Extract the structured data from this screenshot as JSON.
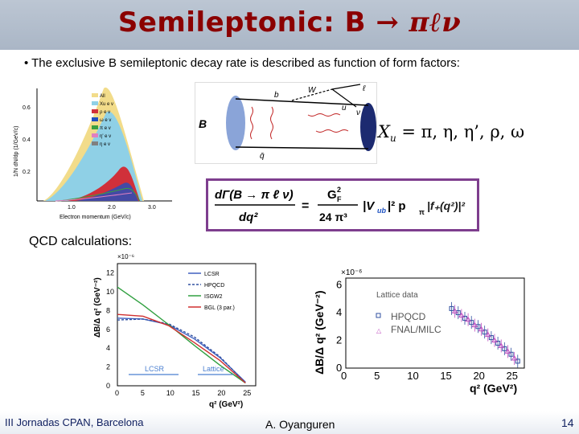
{
  "slide": {
    "title_prefix": "Semileptonic: B ",
    "title_arrow": "→",
    "title_products": " πℓν",
    "bullet": "• The exclusive B semileptonic decay rate is described as function of form factors:",
    "xu_label": "= π, η, η’, ρ, ω",
    "qcd_label": "QCD calculations:",
    "footer_left": "III Jornadas CPAN, Barcelona",
    "footer_mid": "A. Oyanguren",
    "footer_right": "14"
  },
  "feynman": {
    "B": "B",
    "b": "b",
    "W": "W",
    "u": "u",
    "l": "ℓ",
    "nu": "ν",
    "qbar": "q̄",
    "Xu": "X"
  },
  "formula": {
    "lhs_num": "dΓ(B → π ℓ ν)",
    "lhs_den": "dq²",
    "equals": "=",
    "rhs_num": "G",
    "rhs_den": "24 π³",
    "vub": "|V",
    "ub_sub": "ub",
    "rest": "|² p",
    "pi_sub": "π",
    "cube": "³",
    "ff": "|f₊(q²)|²"
  },
  "plot_left": {
    "ylabel": "1/N dN/dp (1/GeV/c)",
    "xlabel": "Electron momentum (GeV/c)",
    "yticks": [
      "0.6",
      "0.4",
      "0.2"
    ],
    "xticks": [
      "1.0",
      "2.0",
      "3.0"
    ],
    "legend": [
      "All",
      "Xu e v",
      "ρ e v",
      "ω e v",
      "π e v",
      "η' e v",
      "η e v"
    ],
    "colors": [
      "#f2dc8a",
      "#8fd0e6",
      "#d0303a",
      "#2050c0",
      "#3aa040",
      "#e080c0",
      "#808080"
    ]
  },
  "plot_mid": {
    "scale": "×10⁻⁶",
    "ylabel": "ΔB/Δ q² (GeV⁻²)",
    "xlabel": "q² (GeV²)",
    "yticks": [
      "12",
      "10",
      "8",
      "6",
      "4",
      "2",
      "0"
    ],
    "xticks": [
      "0",
      "5",
      "10",
      "15",
      "20",
      "25"
    ],
    "legend": [
      "LCSR",
      "HPQCD",
      "ISGW2",
      "BGL (3 par.)"
    ],
    "legend_colors": [
      "#4060c0",
      "#3050a0",
      "#30a040",
      "#d03030"
    ],
    "region_lcsr": "LCSR",
    "region_lattice": "Lattice",
    "chart_data": {
      "type": "line",
      "x": [
        0,
        5,
        10,
        15,
        20,
        25
      ],
      "series": [
        {
          "name": "LCSR",
          "values": [
            7.2,
            7.1,
            6.5,
            5.0,
            3.0,
            0.4
          ]
        },
        {
          "name": "HPQCD",
          "values": [
            7.0,
            7.1,
            6.6,
            5.2,
            3.1,
            0.3
          ]
        },
        {
          "name": "ISGW2",
          "values": [
            10.5,
            8.6,
            6.5,
            4.3,
            2.2,
            0.3
          ]
        },
        {
          "name": "BGL (3 par.)",
          "values": [
            7.6,
            7.4,
            6.4,
            4.6,
            2.7,
            0.3
          ]
        }
      ],
      "xlim": [
        0,
        27
      ],
      "ylim": [
        0,
        13
      ]
    }
  },
  "plot_right": {
    "scale": "×10⁻⁶",
    "ylabel": "ΔB/Δ q² (GeV⁻²)",
    "xlabel": "q² (GeV²)",
    "yticks": [
      "6",
      "4",
      "2",
      "0"
    ],
    "xticks": [
      "0",
      "5",
      "10",
      "15",
      "20",
      "25"
    ],
    "inset_title": "Lattice data",
    "legend": [
      "HPQCD",
      "FNAL/MILC"
    ],
    "legend_colors": [
      "#3050a0",
      "#c050c0"
    ],
    "chart_data": {
      "type": "scatter",
      "xlim": [
        0,
        27
      ],
      "ylim": [
        0,
        6.5
      ],
      "series": [
        {
          "name": "HPQCD",
          "x": [
            16,
            17,
            18,
            19,
            20,
            21,
            22,
            23,
            24,
            25,
            26
          ],
          "y": [
            4.3,
            4.0,
            3.6,
            3.3,
            3.0,
            2.6,
            2.2,
            1.8,
            1.4,
            1.0,
            0.5
          ]
        },
        {
          "name": "FNAL/MILC",
          "x": [
            16.5,
            17.5,
            18.5,
            19.5,
            20.5,
            21.5,
            22.5,
            23.5,
            24.5,
            25.5
          ],
          "y": [
            4.1,
            3.8,
            3.5,
            3.1,
            2.8,
            2.4,
            2.0,
            1.6,
            1.2,
            0.7
          ]
        }
      ]
    }
  }
}
